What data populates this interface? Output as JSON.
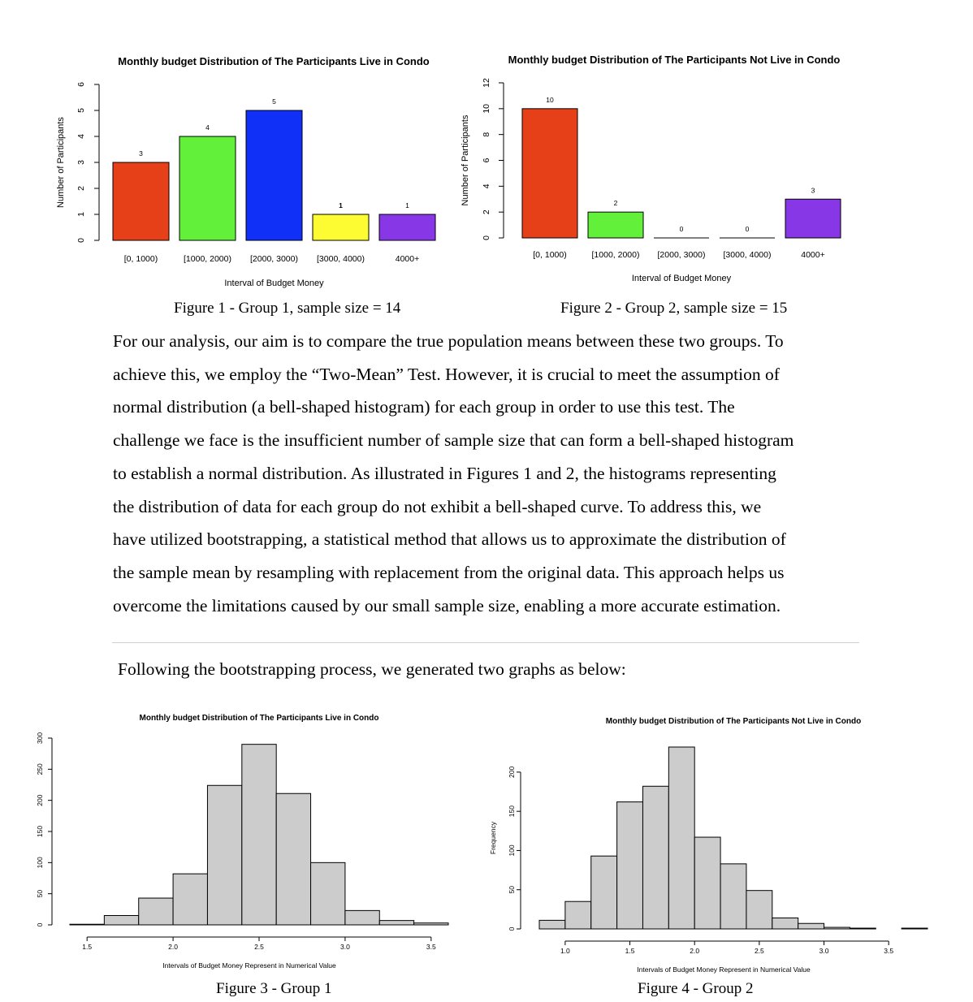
{
  "captions": {
    "fig1": "Figure 1 - Group 1, sample size = 14",
    "fig2": "Figure 2 - Group 2, sample size = 15",
    "fig3": "Figure 3 - Group 1",
    "fig4": "Figure 4 - Group 2"
  },
  "paragraph": [
    "For our analysis, our aim is to compare the true population means between these two groups. To",
    "achieve this, we employ the “Two-Mean” Test. However, it is crucial to meet the assumption of",
    "normal distribution (a bell-shaped histogram) for each group in order to use this test. The",
    "challenge we face is the insufficient number of sample size that can form a bell-shaped histogram",
    "to establish a normal distribution. As illustrated in Figures 1 and 2, the histograms representing",
    "the distribution of data for each group do not exhibit a bell-shaped curve. To address this, we",
    "have utilized bootstrapping, a statistical method that allows us to approximate the distribution of",
    "the sample mean by resampling with replacement from the original data. This approach helps us",
    "overcome the limitations caused by our small sample size, enabling a more accurate estimation."
  ],
  "intro_line": "Following the bootstrapping process, we generated two graphs as below:",
  "chart_data": [
    {
      "id": "fig1",
      "type": "bar",
      "title": "Monthly budget Distribution of The Participants Live in Condo",
      "xlabel": "Interval of Budget Money",
      "ylabel": "Number of Participants",
      "categories": [
        "[0, 1000)",
        "[1000, 2000)",
        "[2000, 3000)",
        "[3000, 4000)",
        "4000+"
      ],
      "values": [
        3,
        4,
        5,
        1,
        1
      ],
      "data_labels": [
        "3",
        "4",
        "5",
        "1",
        "1"
      ],
      "colors": [
        "#e64019",
        "#63f03a",
        "#1130f7",
        "#fdfc32",
        "#8837e6"
      ],
      "ylim": [
        0,
        6
      ],
      "yticks": [
        0,
        1,
        2,
        3,
        4,
        5,
        6
      ]
    },
    {
      "id": "fig2",
      "type": "bar",
      "title": "Monthly budget Distribution of The Participants Not Live in Condo",
      "xlabel": "Interval of Budget Money",
      "ylabel": "Number of Participants",
      "categories": [
        "[0, 1000)",
        "[1000, 2000)",
        "[2000, 3000)",
        "[3000, 4000)",
        "4000+"
      ],
      "values": [
        10,
        2,
        0,
        0,
        3
      ],
      "data_labels": [
        "10",
        "2",
        "0",
        "0",
        "3"
      ],
      "colors": [
        "#e64019",
        "#63f03a",
        "#1130f7",
        "#fdfc32",
        "#8837e6"
      ],
      "ylim": [
        0,
        12
      ],
      "yticks": [
        0,
        2,
        4,
        6,
        8,
        10,
        12
      ]
    },
    {
      "id": "fig3",
      "type": "bar",
      "subtype": "histogram",
      "title": "Monthly budget Distribution of The Participants Live in Condo",
      "xlabel": "Intervals of Budget Money Represent in Numerical Value",
      "ylabel": "",
      "bin_edges": [
        1.4,
        1.6,
        1.8,
        2.0,
        2.2,
        2.4,
        2.6,
        2.8,
        3.0,
        3.2,
        3.4,
        3.6
      ],
      "counts": [
        1,
        15,
        43,
        82,
        224,
        290,
        211,
        100,
        23,
        7,
        3
      ],
      "xticks": [
        1.5,
        2.0,
        2.5,
        3.0,
        3.5
      ],
      "xtick_labels": [
        "1.5",
        "2.0",
        "2.5",
        "3.0",
        "3.5"
      ],
      "yticks": [
        0,
        50,
        100,
        150,
        200,
        250,
        300
      ],
      "ylim": [
        0,
        300
      ],
      "bar_color": "#cccccc"
    },
    {
      "id": "fig4",
      "type": "bar",
      "subtype": "histogram",
      "title": "Monthly budget Distribution of The Participants Not Live in Condo",
      "xlabel": "Intervals of Budget Money Represent in Numerical Value",
      "ylabel": "Frequency",
      "bin_edges": [
        0.8,
        1.0,
        1.2,
        1.4,
        1.6,
        1.8,
        2.0,
        2.2,
        2.4,
        2.6,
        2.8,
        3.0,
        3.2,
        3.4,
        3.6,
        3.8
      ],
      "counts": [
        11,
        35,
        93,
        162,
        182,
        232,
        117,
        83,
        49,
        14,
        7,
        2,
        1,
        0,
        1
      ],
      "xticks": [
        1.0,
        1.5,
        2.0,
        2.5,
        3.0,
        3.5
      ],
      "xtick_labels": [
        "1.0",
        "1.5",
        "2.0",
        "2.5",
        "3.0",
        "3.5"
      ],
      "yticks": [
        0,
        50,
        100,
        150,
        200
      ],
      "ylim": [
        0,
        232
      ],
      "bar_color": "#cccccc"
    }
  ]
}
